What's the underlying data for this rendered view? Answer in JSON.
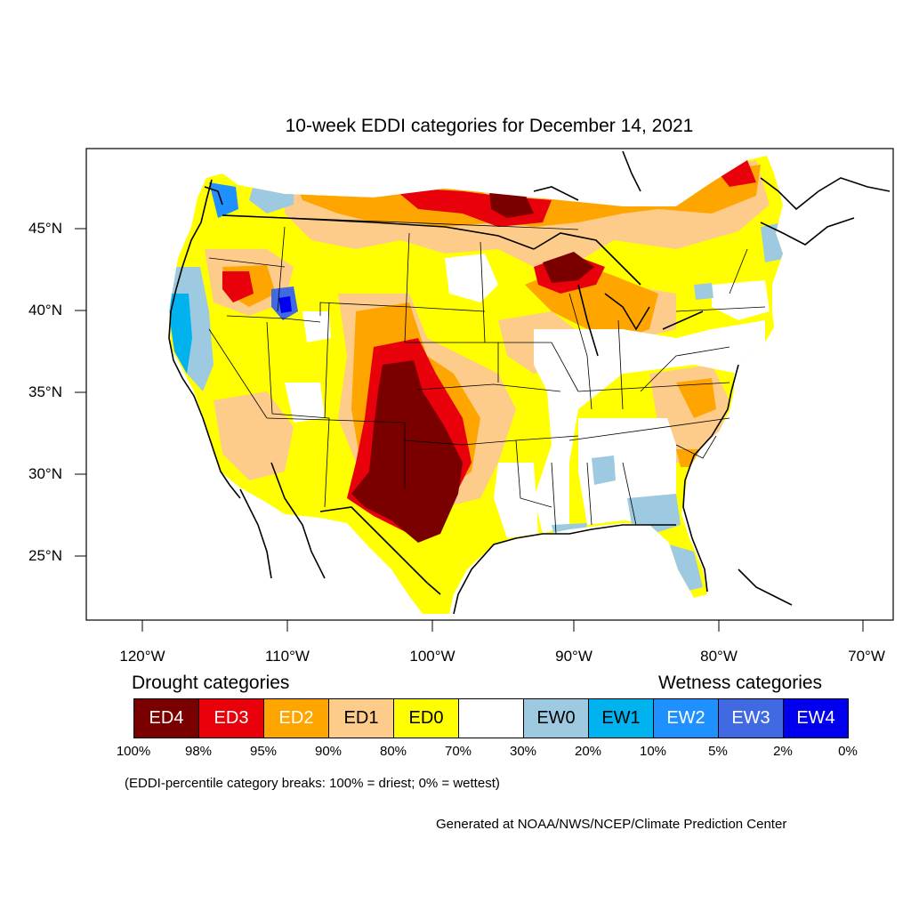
{
  "title": "10-week EDDI categories for December 14, 2021",
  "latitude_labels": [
    "45°N",
    "40°N",
    "35°N",
    "30°N",
    "25°N"
  ],
  "longitude_labels": [
    "120°W",
    "110°W",
    "100°W",
    "90°W",
    "80°W",
    "70°W"
  ],
  "legend": {
    "drought_heading": "Drought categories",
    "wetness_heading": "Wetness categories",
    "categories": [
      {
        "label": "ED4",
        "color": "#7a0000",
        "text_color": "#ffffff"
      },
      {
        "label": "ED3",
        "color": "#e8000b",
        "text_color": "#ffffff"
      },
      {
        "label": "ED2",
        "color": "#ffa500",
        "text_color": "#ffffff"
      },
      {
        "label": "ED1",
        "color": "#fdcc8a",
        "text_color": "#000000"
      },
      {
        "label": "ED0",
        "color": "#ffff00",
        "text_color": "#000000"
      },
      {
        "label": "",
        "color": "#ffffff",
        "text_color": "#000000"
      },
      {
        "label": "EW0",
        "color": "#9ecae1",
        "text_color": "#000000"
      },
      {
        "label": "EW1",
        "color": "#00b2ee",
        "text_color": "#000000"
      },
      {
        "label": "EW2",
        "color": "#1e90ff",
        "text_color": "#ffffff"
      },
      {
        "label": "EW3",
        "color": "#4169e1",
        "text_color": "#ffffff"
      },
      {
        "label": "EW4",
        "color": "#0000ee",
        "text_color": "#ffffff"
      }
    ],
    "percent_breaks": [
      "100%",
      "98%",
      "95%",
      "90%",
      "80%",
      "70%",
      "30%",
      "20%",
      "10%",
      "5%",
      "2%",
      "0%"
    ]
  },
  "footnote": "(EDDI-percentile category breaks: 100% = driest; 0% = wettest)",
  "credit": "Generated at NOAA/NWS/NCEP/Climate Prediction Center"
}
